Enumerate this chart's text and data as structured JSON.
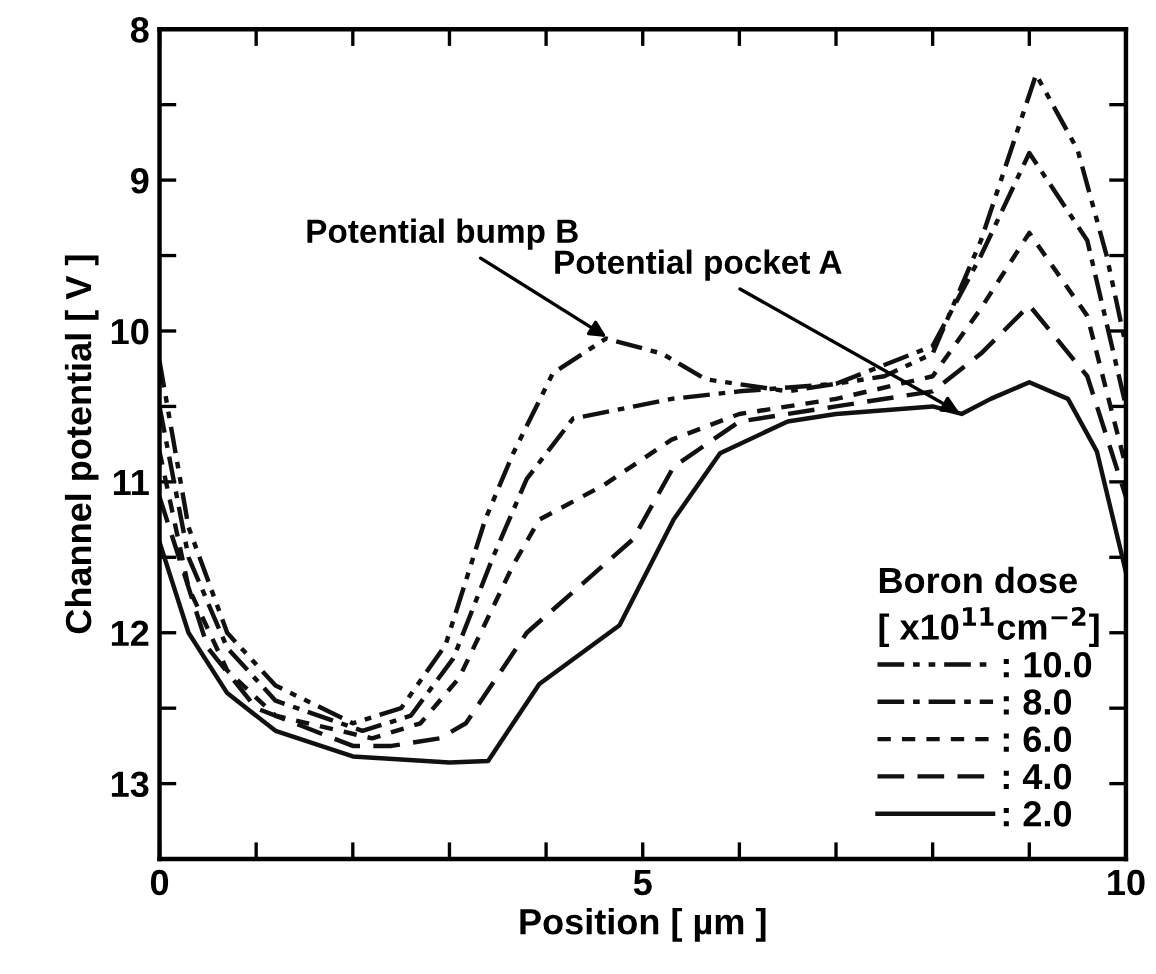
{
  "chart_data": {
    "type": "line",
    "xlabel": "Position [ µm ]",
    "ylabel": "Channel potential [ V ]",
    "legend_title": "Boron dose\n[ x10$^{11}$cm$^{−2}$]",
    "xlim": [
      0,
      10
    ],
    "ylim": [
      13.5,
      8
    ],
    "xticks": [
      0,
      {
        "value": 1,
        "label": null
      },
      {
        "value": 2,
        "label": null
      },
      {
        "value": 3,
        "label": null
      },
      {
        "value": 4,
        "label": null
      },
      5,
      {
        "value": 6,
        "label": null
      },
      {
        "value": 7,
        "label": null
      },
      {
        "value": 8,
        "label": null
      },
      {
        "value": 9,
        "label": null
      },
      10
    ],
    "yticks": [
      8,
      {
        "value": 8.5,
        "label": null
      },
      9,
      {
        "value": 9.5,
        "label": null
      },
      10,
      {
        "value": 10.5,
        "label": null
      },
      11,
      {
        "value": 11.5,
        "label": null
      },
      12,
      {
        "value": 12.5,
        "label": null
      },
      13
    ],
    "grid": false,
    "legend": "bottom right",
    "marker": "none",
    "annotations": [
      {
        "text": "Potential pocket A",
        "x": 8.3,
        "y": 10.55
      },
      {
        "text": "Potential bump B",
        "x": 4.65,
        "y": 10.05
      }
    ],
    "series": [
      {
        "name": ": 10.0",
        "color": "#111111",
        "line_style": "dashdotdot",
        "x": [
          0,
          0.3,
          0.7,
          1.2,
          2.0,
          2.5,
          2.96,
          3.37,
          3.66,
          4.07,
          4.62,
          5.2,
          5.65,
          6.5,
          7.5,
          8.0,
          8.5,
          9.07,
          9.5,
          9.8,
          10
        ],
        "values": [
          10.2,
          11.3,
          12.0,
          12.35,
          12.6,
          12.5,
          12.08,
          11.25,
          10.81,
          10.28,
          10.05,
          10.15,
          10.32,
          10.4,
          10.3,
          10.15,
          9.4,
          8.3,
          8.8,
          9.5,
          10.1
        ]
      },
      {
        "name": ": 8.0",
        "color": "#111111",
        "line_style": "dashdot",
        "x": [
          0,
          0.3,
          0.7,
          1.2,
          2.1,
          2.6,
          3.04,
          3.45,
          3.8,
          4.28,
          5.3,
          6.0,
          7.0,
          8.0,
          8.5,
          9.0,
          9.6,
          10
        ],
        "values": [
          10.5,
          11.5,
          12.1,
          12.45,
          12.65,
          12.55,
          12.17,
          11.5,
          10.98,
          10.58,
          10.45,
          10.4,
          10.35,
          10.1,
          9.5,
          8.82,
          9.4,
          10.5
        ]
      },
      {
        "name": ": 6.0",
        "color": "#111111",
        "line_style": "dotted",
        "x": [
          0,
          0.3,
          0.7,
          1.2,
          2.2,
          2.7,
          3.1,
          3.66,
          3.93,
          4.6,
          5.3,
          6.0,
          7.0,
          8.0,
          8.5,
          9.0,
          9.6,
          10
        ],
        "values": [
          10.8,
          11.7,
          12.25,
          12.55,
          12.7,
          12.6,
          12.3,
          11.55,
          11.25,
          11.02,
          10.72,
          10.55,
          10.45,
          10.3,
          9.85,
          9.35,
          9.9,
          10.9
        ]
      },
      {
        "name": ": 4.0",
        "color": "#111111",
        "line_style": "dashed",
        "x": [
          0,
          0.5,
          1.0,
          2.0,
          2.4,
          2.9,
          3.17,
          3.8,
          4.9,
          5.32,
          6.0,
          7.0,
          8.0,
          8.5,
          9.0,
          9.6,
          10
        ],
        "values": [
          11.1,
          12.1,
          12.5,
          12.75,
          12.75,
          12.7,
          12.6,
          12.0,
          11.38,
          10.9,
          10.6,
          10.5,
          10.4,
          10.15,
          9.83,
          10.3,
          11.1
        ]
      },
      {
        "name": ": 2.0",
        "color": "#111111",
        "line_style": "solid",
        "x": [
          0,
          0.3,
          0.7,
          1.2,
          2.0,
          3.0,
          3.4,
          3.93,
          4.76,
          5.32,
          5.8,
          6.5,
          7.0,
          8.0,
          8.3,
          8.6,
          9.0,
          9.4,
          9.7,
          10
        ],
        "values": [
          11.4,
          12.0,
          12.4,
          12.65,
          12.82,
          12.86,
          12.85,
          12.34,
          11.95,
          11.25,
          10.81,
          10.6,
          10.55,
          10.5,
          10.55,
          10.45,
          10.34,
          10.45,
          10.8,
          11.6
        ]
      }
    ]
  }
}
